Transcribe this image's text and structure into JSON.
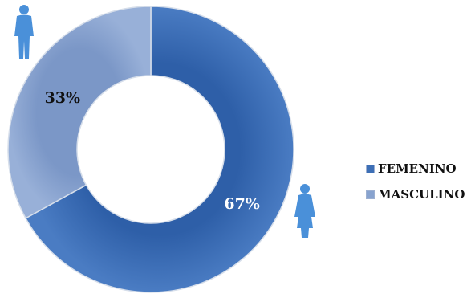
{
  "chart_data": {
    "type": "pie",
    "title": "",
    "categories": [
      "FEMENINO",
      "MASCULINO"
    ],
    "values": [
      67,
      33
    ],
    "value_labels": [
      "67%",
      "33%"
    ],
    "colors": [
      "#3d6fb6",
      "#88a3cf"
    ],
    "legend_placement": "right",
    "style": "donut"
  },
  "icons": [
    "person-icon",
    "person-icon"
  ]
}
